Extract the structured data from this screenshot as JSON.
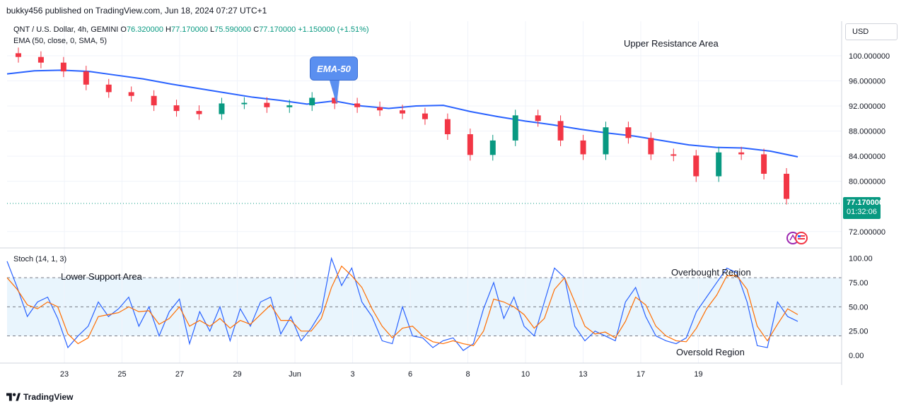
{
  "header": {
    "published": "bukky456 published on TradingView.com, Jun 18, 2024 07:27 UTC+1"
  },
  "legend": {
    "symbol": "QNT / U.S. Dollar, 4h, GEMINI",
    "o_label": "O",
    "o_value": "76.320000",
    "h_label": "H",
    "h_value": "77.170000",
    "l_label": "L",
    "l_value": "75.590000",
    "c_label": "C",
    "c_value": "77.170000",
    "change": "+1.150000 (+1.51%)",
    "ema": "EMA (50, close, 0, SMA, 5)",
    "stoch": "Stoch (14, 1, 3)"
  },
  "annotations": {
    "upper": "Upper Resistance Area",
    "lower": "Lower Support Area",
    "overbought": "Overbought Region",
    "oversold": "Oversold Region",
    "ema_callout": "EMA-50"
  },
  "currency_button": "USD",
  "last_price": {
    "value": "77.170000",
    "countdown": "01:32:06"
  },
  "footer": {
    "brand": "TradingView"
  },
  "colors": {
    "up": "#089981",
    "down": "#f23645",
    "ema": "#2962ff",
    "stoch_k": "#2962ff",
    "stoch_d": "#ff6d00",
    "band_fill": "#e3f2fd",
    "price_tag": "#089981"
  },
  "chart_data": [
    {
      "type": "candlestick",
      "title": "QNT / U.S. Dollar, 4h, GEMINI",
      "x_tick_labels": [
        "23",
        "25",
        "27",
        "29",
        "Jun",
        "3",
        "6",
        "8",
        "10",
        "13",
        "17",
        "19"
      ],
      "y_tick_labels": [
        "100.000000",
        "96.000000",
        "92.000000",
        "88.000000",
        "84.000000",
        "80.000000",
        "72.000000"
      ],
      "ylim": [
        69.5,
        105.5
      ],
      "last_price": 77.17,
      "series": [
        {
          "name": "EMA (50, close, 0, SMA, 5)",
          "type": "line",
          "values": [
            97.1,
            97.6,
            97.7,
            97.5,
            96.9,
            96.3,
            95.5,
            94.8,
            94.1,
            93.4,
            92.9,
            92.3,
            92.8,
            92.0,
            91.6,
            92.0,
            92.1,
            91.1,
            90.3,
            89.6,
            89.0,
            88.3,
            87.7,
            87.2,
            86.5,
            85.8,
            85.4,
            85.3,
            84.8,
            83.9
          ]
        },
        {
          "name": "QNT",
          "type": "candlestick",
          "closes": [
            99.8,
            98.9,
            97.5,
            95.4,
            94.2,
            93.6,
            92.1,
            91.2,
            90.7,
            92.4,
            92.5,
            91.8,
            92.1,
            93.3,
            92.4,
            91.8,
            91.3,
            90.8,
            89.9,
            87.5,
            84.2,
            86.5,
            90.5,
            89.6,
            86.5,
            84.3,
            88.6,
            86.9,
            84.3,
            84.1,
            80.8,
            84.6,
            84.3,
            81.2,
            77.2
          ]
        }
      ]
    },
    {
      "type": "line",
      "title": "Stoch (14, 1, 3)",
      "y_tick_labels": [
        "100.00",
        "75.00",
        "50.00",
        "25.00",
        "0.00"
      ],
      "ylim": [
        -8,
        110
      ],
      "bands": {
        "upper": 80,
        "middle": 50,
        "lower": 20
      },
      "series": [
        {
          "name": "%K",
          "values": [
            97,
            70,
            40,
            55,
            60,
            38,
            8,
            20,
            30,
            55,
            40,
            48,
            60,
            30,
            50,
            20,
            45,
            58,
            12,
            45,
            25,
            50,
            15,
            48,
            30,
            55,
            60,
            22,
            40,
            15,
            28,
            45,
            100,
            72,
            90,
            55,
            40,
            15,
            12,
            50,
            20,
            18,
            8,
            15,
            18,
            5,
            12,
            48,
            75,
            38,
            60,
            30,
            20,
            55,
            90,
            80,
            30,
            15,
            25,
            20,
            15,
            55,
            70,
            40,
            20,
            15,
            12,
            18,
            45,
            60,
            75,
            90,
            85,
            55,
            10,
            8,
            55,
            40,
            35
          ]
        },
        {
          "name": "%D",
          "values": [
            80,
            68,
            52,
            48,
            55,
            50,
            22,
            12,
            18,
            40,
            42,
            44,
            50,
            45,
            46,
            32,
            38,
            50,
            30,
            36,
            30,
            38,
            28,
            36,
            32,
            42,
            52,
            36,
            36,
            25,
            25,
            38,
            70,
            92,
            82,
            70,
            48,
            30,
            18,
            28,
            30,
            20,
            14,
            12,
            15,
            12,
            10,
            25,
            58,
            55,
            50,
            42,
            28,
            38,
            68,
            80,
            55,
            30,
            22,
            24,
            18,
            35,
            60,
            52,
            30,
            20,
            15,
            14,
            28,
            48,
            62,
            82,
            82,
            68,
            30,
            15,
            32,
            48,
            42
          ]
        }
      ]
    }
  ]
}
